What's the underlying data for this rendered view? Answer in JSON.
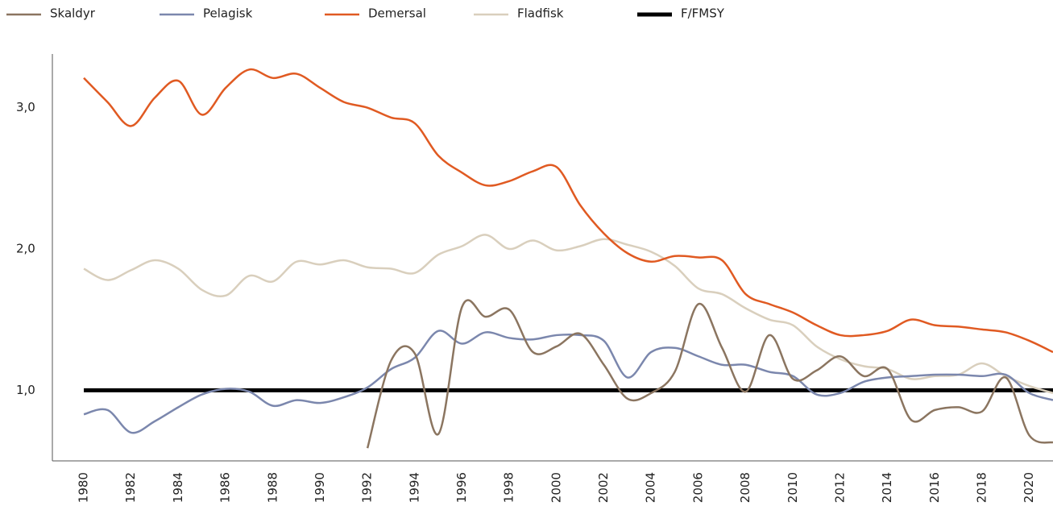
{
  "chart_data": {
    "type": "line",
    "x": [
      1980,
      1981,
      1982,
      1983,
      1984,
      1985,
      1986,
      1987,
      1988,
      1989,
      1990,
      1991,
      1992,
      1993,
      1994,
      1995,
      1996,
      1997,
      1998,
      1999,
      2000,
      2001,
      2002,
      2003,
      2004,
      2005,
      2006,
      2007,
      2008,
      2009,
      2010,
      2011,
      2012,
      2013,
      2014,
      2015,
      2016,
      2017,
      2018,
      2019,
      2020,
      2021
    ],
    "series": [
      {
        "name": "Skaldyr",
        "color": "#8b7560",
        "values": [
          null,
          null,
          null,
          null,
          null,
          null,
          null,
          null,
          null,
          null,
          null,
          null,
          0.59,
          1.21,
          1.26,
          0.69,
          1.59,
          1.52,
          1.57,
          1.27,
          1.31,
          1.4,
          1.18,
          0.94,
          0.98,
          1.13,
          1.61,
          1.3,
          0.99,
          1.39,
          1.08,
          1.14,
          1.24,
          1.1,
          1.15,
          0.79,
          0.86,
          0.88,
          0.85,
          1.09,
          0.68,
          0.63
        ]
      },
      {
        "name": "Pelagisk",
        "color": "#7b87ad",
        "values": [
          0.83,
          0.86,
          0.7,
          0.78,
          0.88,
          0.97,
          1.01,
          0.99,
          0.89,
          0.93,
          0.91,
          0.95,
          1.02,
          1.15,
          1.23,
          1.42,
          1.33,
          1.41,
          1.37,
          1.36,
          1.39,
          1.39,
          1.35,
          1.09,
          1.27,
          1.3,
          1.24,
          1.18,
          1.18,
          1.13,
          1.1,
          0.97,
          0.98,
          1.06,
          1.09,
          1.1,
          1.11,
          1.11,
          1.1,
          1.11,
          0.98,
          0.93
        ]
      },
      {
        "name": "Demersal",
        "color": "#e05a22",
        "values": [
          3.21,
          3.04,
          2.87,
          3.07,
          3.19,
          2.95,
          3.14,
          3.27,
          3.21,
          3.24,
          3.14,
          3.04,
          3.0,
          2.93,
          2.89,
          2.66,
          2.54,
          2.45,
          2.48,
          2.55,
          2.58,
          2.31,
          2.11,
          1.97,
          1.91,
          1.95,
          1.94,
          1.92,
          1.68,
          1.61,
          1.55,
          1.46,
          1.39,
          1.39,
          1.42,
          1.5,
          1.46,
          1.45,
          1.43,
          1.41,
          1.35,
          1.27
        ]
      },
      {
        "name": "Fladfisk",
        "color": "#d9cfbd",
        "values": [
          1.86,
          1.78,
          1.85,
          1.92,
          1.86,
          1.71,
          1.67,
          1.81,
          1.77,
          1.91,
          1.89,
          1.92,
          1.87,
          1.86,
          1.83,
          1.96,
          2.02,
          2.1,
          2.0,
          2.06,
          1.99,
          2.02,
          2.07,
          2.03,
          1.98,
          1.88,
          1.72,
          1.68,
          1.58,
          1.5,
          1.46,
          1.31,
          1.22,
          1.17,
          1.15,
          1.08,
          1.1,
          1.11,
          1.19,
          1.1,
          1.03,
          0.98
        ]
      },
      {
        "name": "F/FMSY",
        "color": "#000000",
        "values": [
          1,
          1,
          1,
          1,
          1,
          1,
          1,
          1,
          1,
          1,
          1,
          1,
          1,
          1,
          1,
          1,
          1,
          1,
          1,
          1,
          1,
          1,
          1,
          1,
          1,
          1,
          1,
          1,
          1,
          1,
          1,
          1,
          1,
          1,
          1,
          1,
          1,
          1,
          1,
          1,
          1,
          1
        ]
      }
    ],
    "xlim": [
      1978.67,
      2021
    ],
    "xticks": [
      1980,
      1982,
      1984,
      1986,
      1988,
      1990,
      1992,
      1994,
      1996,
      1998,
      2000,
      2002,
      2004,
      2006,
      2008,
      2010,
      2012,
      2014,
      2016,
      2018,
      2020
    ],
    "ylim": [
      0.5,
      3.38
    ],
    "yticks": [
      {
        "value": 1,
        "label": "1,0"
      },
      {
        "value": 2,
        "label": "2,0"
      },
      {
        "value": 3,
        "label": "3,0"
      }
    ]
  }
}
